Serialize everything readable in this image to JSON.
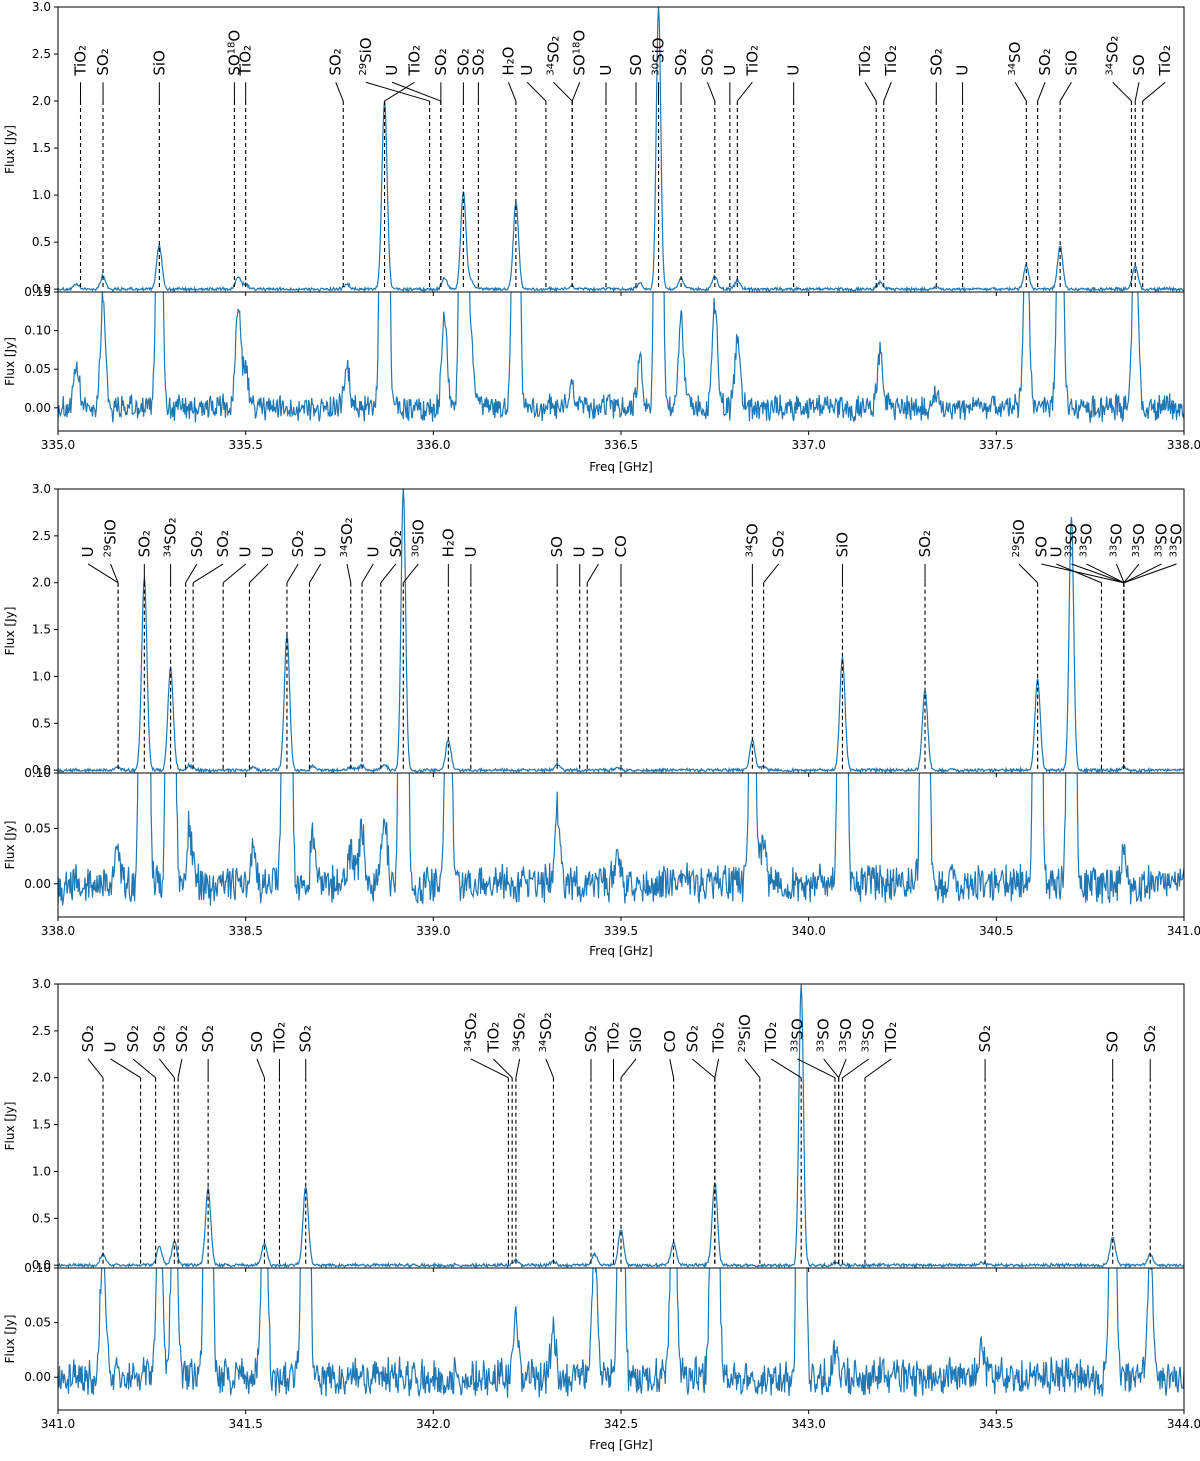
{
  "chart_data": [
    {
      "type": "line",
      "panel": "upper",
      "xlim": [
        335.0,
        338.0
      ],
      "ylim_main": [
        -0.03,
        3.0
      ],
      "ylim_zoom": [
        -0.03,
        0.15
      ],
      "xticks": [
        "335.0",
        "335.5",
        "336.0",
        "336.5",
        "337.0",
        "337.5",
        "338.0"
      ],
      "yticks_main": [
        "0.0",
        "0.5",
        "1.0",
        "1.5",
        "2.0",
        "2.5",
        "3.0"
      ],
      "yticks_zoom": [
        "0.00",
        "0.05",
        "0.10",
        "0.15"
      ],
      "xlabel": "Freq [GHz]",
      "ylabel": "Flux [Jy]",
      "peaks": [
        {
          "x": 335.05,
          "y": 0.05
        },
        {
          "x": 335.12,
          "y": 0.14
        },
        {
          "x": 335.27,
          "y": 0.47
        },
        {
          "x": 335.48,
          "y": 0.13
        },
        {
          "x": 335.5,
          "y": 0.05
        },
        {
          "x": 335.77,
          "y": 0.05
        },
        {
          "x": 335.87,
          "y": 2.0
        },
        {
          "x": 336.03,
          "y": 0.12
        },
        {
          "x": 336.08,
          "y": 1.03
        },
        {
          "x": 336.1,
          "y": 0.09
        },
        {
          "x": 336.22,
          "y": 0.92
        },
        {
          "x": 336.37,
          "y": 0.03
        },
        {
          "x": 336.55,
          "y": 0.06
        },
        {
          "x": 336.6,
          "y": 3.0
        },
        {
          "x": 336.66,
          "y": 0.12
        },
        {
          "x": 336.75,
          "y": 0.13
        },
        {
          "x": 336.81,
          "y": 0.09
        },
        {
          "x": 337.19,
          "y": 0.07
        },
        {
          "x": 337.34,
          "y": 0.02
        },
        {
          "x": 337.58,
          "y": 0.25
        },
        {
          "x": 337.67,
          "y": 0.46
        },
        {
          "x": 337.87,
          "y": 0.25
        }
      ],
      "lines": [
        {
          "label": "TiO₂",
          "sup": "",
          "x": 335.06,
          "lx": 335.06
        },
        {
          "label": "SO₂",
          "sup": "",
          "x": 335.12,
          "lx": 335.12
        },
        {
          "label": "SiO",
          "sup": "",
          "x": 335.27,
          "lx": 335.27
        },
        {
          "label": "SO",
          "sup": "18",
          "tail": "O",
          "x": 335.47,
          "lx": 335.47
        },
        {
          "label": "TiO₂",
          "sup": "",
          "x": 335.5,
          "lx": 335.5
        },
        {
          "label": "SO₂",
          "sup": "",
          "x": 335.76,
          "lx": 335.74
        },
        {
          "label": "SiO",
          "sup": "29",
          "x": 335.99,
          "lx": 335.82
        },
        {
          "label": "U",
          "sup": "",
          "x": 336.02,
          "lx": 335.89
        },
        {
          "label": "TiO₂",
          "sup": "",
          "x": 335.87,
          "lx": 335.95
        },
        {
          "label": "SO₂",
          "sup": "",
          "x": 336.02,
          "lx": 336.02
        },
        {
          "label": "SO₂",
          "sup": "",
          "x": 336.08,
          "lx": 336.08
        },
        {
          "label": "SO₂",
          "sup": "",
          "x": 336.12,
          "lx": 336.12
        },
        {
          "label": "H₂O",
          "sup": "",
          "x": 336.22,
          "lx": 336.2
        },
        {
          "label": "U",
          "sup": "",
          "x": 336.3,
          "lx": 336.25
        },
        {
          "label": "SO₂",
          "sup": "34",
          "x": 336.37,
          "lx": 336.32
        },
        {
          "label": "SO",
          "sup": "18",
          "tail": "O",
          "x": 336.37,
          "lx": 336.39
        },
        {
          "label": "U",
          "sup": "",
          "x": 336.46,
          "lx": 336.46
        },
        {
          "label": "SO",
          "sup": "",
          "x": 336.54,
          "lx": 336.54
        },
        {
          "label": "SiO",
          "sup": "30",
          "x": 336.6,
          "lx": 336.6
        },
        {
          "label": "SO₂",
          "sup": "",
          "x": 336.66,
          "lx": 336.66
        },
        {
          "label": "SO₂",
          "sup": "",
          "x": 336.75,
          "lx": 336.73
        },
        {
          "label": "U",
          "sup": "",
          "x": 336.79,
          "lx": 336.79
        },
        {
          "label": "TiO₂",
          "sup": "",
          "x": 336.81,
          "lx": 336.85
        },
        {
          "label": "U",
          "sup": "",
          "x": 336.96,
          "lx": 336.96
        },
        {
          "label": "TiO₂",
          "sup": "",
          "x": 337.18,
          "lx": 337.15
        },
        {
          "label": "TiO₂",
          "sup": "",
          "x": 337.2,
          "lx": 337.22
        },
        {
          "label": "SO₂",
          "sup": "",
          "x": 337.34,
          "lx": 337.34
        },
        {
          "label": "U",
          "sup": "",
          "x": 337.41,
          "lx": 337.41
        },
        {
          "label": "SO",
          "sup": "34",
          "x": 337.58,
          "lx": 337.55
        },
        {
          "label": "SO₂",
          "sup": "",
          "x": 337.61,
          "lx": 337.63
        },
        {
          "label": "SiO",
          "sup": "",
          "x": 337.67,
          "lx": 337.7
        },
        {
          "label": "SO₂",
          "sup": "34",
          "x": 337.86,
          "lx": 337.81
        },
        {
          "label": "SO",
          "sup": "",
          "x": 337.87,
          "lx": 337.88
        },
        {
          "label": "TiO₂",
          "sup": "",
          "x": 337.89,
          "lx": 337.95
        }
      ]
    },
    {
      "type": "line",
      "panel": "middle",
      "xlim": [
        338.0,
        341.0
      ],
      "ylim_main": [
        -0.03,
        3.0
      ],
      "ylim_zoom": [
        -0.03,
        0.1
      ],
      "xticks": [
        "338.0",
        "338.5",
        "339.0",
        "339.5",
        "340.0",
        "340.5",
        "341.0"
      ],
      "yticks_main": [
        "0.0",
        "0.5",
        "1.0",
        "1.5",
        "2.0",
        "2.5",
        "3.0"
      ],
      "yticks_zoom": [
        "0.00",
        "0.05",
        "0.10"
      ],
      "xlabel": "Freq [GHz]",
      "ylabel": "Flux [Jy]",
      "peaks": [
        {
          "x": 338.16,
          "y": 0.03
        },
        {
          "x": 338.23,
          "y": 2.05
        },
        {
          "x": 338.3,
          "y": 1.1
        },
        {
          "x": 338.35,
          "y": 0.05
        },
        {
          "x": 338.52,
          "y": 0.03
        },
        {
          "x": 338.61,
          "y": 1.45
        },
        {
          "x": 338.68,
          "y": 0.04
        },
        {
          "x": 338.78,
          "y": 0.03
        },
        {
          "x": 338.81,
          "y": 0.05
        },
        {
          "x": 338.87,
          "y": 0.06
        },
        {
          "x": 338.92,
          "y": 3.0
        },
        {
          "x": 339.04,
          "y": 0.32
        },
        {
          "x": 339.33,
          "y": 0.07
        },
        {
          "x": 339.49,
          "y": 0.03
        },
        {
          "x": 339.85,
          "y": 0.32
        },
        {
          "x": 339.88,
          "y": 0.04
        },
        {
          "x": 340.09,
          "y": 1.2
        },
        {
          "x": 340.31,
          "y": 0.85
        },
        {
          "x": 340.61,
          "y": 0.98
        },
        {
          "x": 340.7,
          "y": 2.7
        },
        {
          "x": 340.84,
          "y": 0.03
        }
      ],
      "lines": [
        {
          "label": "U",
          "sup": "",
          "x": 338.16,
          "lx": 338.08
        },
        {
          "label": "SiO",
          "sup": "29",
          "x": 338.16,
          "lx": 338.14
        },
        {
          "label": "SO₂",
          "sup": "",
          "x": 338.23,
          "lx": 338.23
        },
        {
          "label": "SO₂",
          "sup": "34",
          "x": 338.3,
          "lx": 338.3
        },
        {
          "label": "SO₂",
          "sup": "",
          "x": 338.34,
          "lx": 338.37
        },
        {
          "label": "SO₂",
          "sup": "",
          "x": 338.36,
          "lx": 338.44
        },
        {
          "label": "U",
          "sup": "",
          "x": 338.44,
          "lx": 338.5
        },
        {
          "label": "U",
          "sup": "",
          "x": 338.51,
          "lx": 338.56
        },
        {
          "label": "SO₂",
          "sup": "",
          "x": 338.61,
          "lx": 338.64
        },
        {
          "label": "U",
          "sup": "",
          "x": 338.67,
          "lx": 338.7
        },
        {
          "label": "SO₂",
          "sup": "34",
          "x": 338.78,
          "lx": 338.77
        },
        {
          "label": "U",
          "sup": "",
          "x": 338.81,
          "lx": 338.84
        },
        {
          "label": "SO₂",
          "sup": "",
          "x": 338.86,
          "lx": 338.9
        },
        {
          "label": "SiO",
          "sup": "30",
          "x": 338.92,
          "lx": 338.96
        },
        {
          "label": "H₂O",
          "sup": "",
          "x": 339.04,
          "lx": 339.04
        },
        {
          "label": "U",
          "sup": "",
          "x": 339.1,
          "lx": 339.1
        },
        {
          "label": "SO",
          "sup": "",
          "x": 339.33,
          "lx": 339.33
        },
        {
          "label": "U",
          "sup": "",
          "x": 339.39,
          "lx": 339.39
        },
        {
          "label": "U",
          "sup": "",
          "x": 339.41,
          "lx": 339.44
        },
        {
          "label": "CO",
          "sup": "",
          "x": 339.5,
          "lx": 339.5
        },
        {
          "label": "SO",
          "sup": "34",
          "x": 339.85,
          "lx": 339.85
        },
        {
          "label": "SO₂",
          "sup": "",
          "x": 339.88,
          "lx": 339.92
        },
        {
          "label": "SiO",
          "sup": "",
          "x": 340.09,
          "lx": 340.09
        },
        {
          "label": "SO₂",
          "sup": "",
          "x": 340.31,
          "lx": 340.31
        },
        {
          "label": "SiO",
          "sup": "29",
          "x": 340.61,
          "lx": 340.56
        },
        {
          "label": "SO",
          "sup": "",
          "x": 340.84,
          "lx": 340.62
        },
        {
          "label": "U",
          "sup": "",
          "x": 340.78,
          "lx": 340.66
        },
        {
          "label": "SO",
          "sup": "33",
          "x": 340.84,
          "lx": 340.7
        },
        {
          "label": "SO",
          "sup": "33",
          "x": 340.84,
          "lx": 340.74
        },
        {
          "label": "SO",
          "sup": "33",
          "x": 340.84,
          "lx": 340.82
        },
        {
          "label": "SO",
          "sup": "33",
          "x": 340.84,
          "lx": 340.88
        },
        {
          "label": "SO",
          "sup": "33",
          "x": 340.84,
          "lx": 340.94
        },
        {
          "label": "SO",
          "sup": "33",
          "x": 340.84,
          "lx": 340.98
        }
      ]
    },
    {
      "type": "line",
      "panel": "lower",
      "xlim": [
        341.0,
        344.0
      ],
      "ylim_main": [
        -0.03,
        3.0
      ],
      "ylim_zoom": [
        -0.03,
        0.1
      ],
      "xticks": [
        "341.0",
        "341.5",
        "342.0",
        "342.5",
        "343.0",
        "343.5",
        "344.0"
      ],
      "yticks_main": [
        "0.0",
        "0.5",
        "1.0",
        "1.5",
        "2.0",
        "2.5",
        "3.0"
      ],
      "yticks_zoom": [
        "0.00",
        "0.05",
        "0.10"
      ],
      "xlabel": "Freq [GHz]",
      "ylabel": "Flux [Jy]",
      "peaks": [
        {
          "x": 341.12,
          "y": 0.12
        },
        {
          "x": 341.27,
          "y": 0.2
        },
        {
          "x": 341.31,
          "y": 0.25
        },
        {
          "x": 341.4,
          "y": 0.82
        },
        {
          "x": 341.55,
          "y": 0.23
        },
        {
          "x": 341.66,
          "y": 0.84
        },
        {
          "x": 342.22,
          "y": 0.06
        },
        {
          "x": 342.32,
          "y": 0.04
        },
        {
          "x": 342.43,
          "y": 0.12
        },
        {
          "x": 342.5,
          "y": 0.38
        },
        {
          "x": 342.64,
          "y": 0.24
        },
        {
          "x": 342.75,
          "y": 0.88
        },
        {
          "x": 342.98,
          "y": 3.0
        },
        {
          "x": 343.07,
          "y": 0.03
        },
        {
          "x": 343.46,
          "y": 0.03
        },
        {
          "x": 343.81,
          "y": 0.3
        },
        {
          "x": 343.91,
          "y": 0.12
        }
      ],
      "lines": [
        {
          "label": "SO₂",
          "sup": "",
          "x": 341.12,
          "lx": 341.08
        },
        {
          "label": "U",
          "sup": "",
          "x": 341.22,
          "lx": 341.14
        },
        {
          "label": "SO₂",
          "sup": "",
          "x": 341.26,
          "lx": 341.2
        },
        {
          "label": "SO₂",
          "sup": "",
          "x": 341.31,
          "lx": 341.27
        },
        {
          "label": "SO₂",
          "sup": "",
          "x": 341.32,
          "lx": 341.33
        },
        {
          "label": "SO₂",
          "sup": "",
          "x": 341.4,
          "lx": 341.4
        },
        {
          "label": "SO",
          "sup": "",
          "x": 341.55,
          "lx": 341.53
        },
        {
          "label": "TiO₂",
          "sup": "",
          "x": 341.59,
          "lx": 341.59
        },
        {
          "label": "SO₂",
          "sup": "",
          "x": 341.66,
          "lx": 341.66
        },
        {
          "label": "SO₂",
          "sup": "34",
          "x": 342.2,
          "lx": 342.1
        },
        {
          "label": "TiO₂",
          "sup": "",
          "x": 342.21,
          "lx": 342.16
        },
        {
          "label": "SO₂",
          "sup": "34",
          "x": 342.22,
          "lx": 342.23
        },
        {
          "label": "SO₂",
          "sup": "34",
          "x": 342.32,
          "lx": 342.3
        },
        {
          "label": "SO₂",
          "sup": "",
          "x": 342.42,
          "lx": 342.42
        },
        {
          "label": "TiO₂",
          "sup": "",
          "x": 342.48,
          "lx": 342.48
        },
        {
          "label": "SiO",
          "sup": "",
          "x": 342.5,
          "lx": 342.54
        },
        {
          "label": "CO",
          "sup": "",
          "x": 342.64,
          "lx": 342.63
        },
        {
          "label": "SO₂",
          "sup": "",
          "x": 342.75,
          "lx": 342.69
        },
        {
          "label": "TiO₂",
          "sup": "",
          "x": 342.75,
          "lx": 342.76
        },
        {
          "label": "SiO",
          "sup": "29",
          "x": 342.87,
          "lx": 342.83
        },
        {
          "label": "TiO₂",
          "sup": "",
          "x": 342.98,
          "lx": 342.9
        },
        {
          "label": "SO",
          "sup": "33",
          "x": 343.07,
          "lx": 342.97
        },
        {
          "label": "SO",
          "sup": "33",
          "x": 343.08,
          "lx": 343.04
        },
        {
          "label": "SO",
          "sup": "33",
          "x": 343.08,
          "lx": 343.1
        },
        {
          "label": "SO",
          "sup": "33",
          "x": 343.09,
          "lx": 343.16
        },
        {
          "label": "TiO₂",
          "sup": "",
          "x": 343.15,
          "lx": 343.22
        },
        {
          "label": "SO₂",
          "sup": "",
          "x": 343.47,
          "lx": 343.47
        },
        {
          "label": "SO",
          "sup": "",
          "x": 343.81,
          "lx": 343.81
        },
        {
          "label": "SO₂",
          "sup": "",
          "x": 343.91,
          "lx": 343.91
        }
      ]
    }
  ],
  "colors": {
    "spectrum": "#1f77b4",
    "markers": "#000000"
  }
}
